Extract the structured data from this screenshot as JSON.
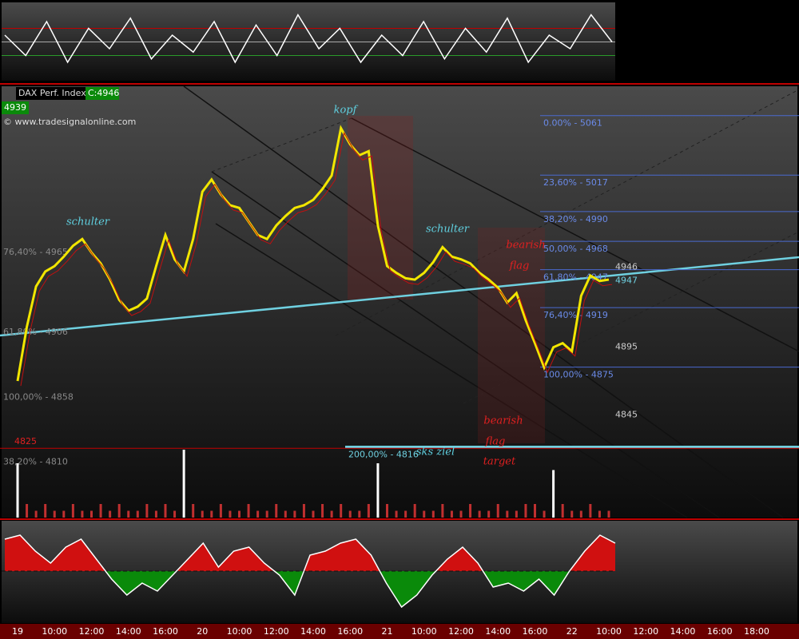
{
  "header": {
    "title": "DAX Perf. Index",
    "close": "C:4946",
    "last": "4939",
    "source": "© www.tradesignalonline.com"
  },
  "chart_data": {
    "type": "line",
    "color": "#f2e600",
    "categories": [
      "19",
      null,
      null,
      null,
      "10:00",
      null,
      null,
      null,
      "12:00",
      null,
      null,
      null,
      "14:00",
      null,
      null,
      null,
      "16:00",
      null,
      null,
      null,
      "20",
      null,
      null,
      null,
      "10:00",
      null,
      null,
      null,
      "12:00",
      null,
      null,
      null,
      "14:00",
      null,
      null,
      null,
      "16:00",
      null,
      null,
      null,
      "21",
      null,
      null,
      null,
      "10:00",
      null,
      null,
      null,
      "12:00",
      null,
      null,
      null,
      "14:00",
      null,
      null,
      null,
      "16:00",
      null,
      null,
      null,
      "22",
      null,
      null,
      null,
      "10:00",
      null,
      null,
      null,
      "12:00",
      null,
      null,
      null,
      "14:00",
      null,
      null,
      null,
      "16:00",
      null,
      null,
      null,
      "18:00"
    ],
    "values": [
      4870,
      4910,
      4940,
      4951,
      4955,
      4962,
      4970,
      4975,
      4965,
      4957,
      4945,
      4930,
      4922,
      4925,
      4931,
      4955,
      4978,
      4960,
      4951,
      4975,
      5010,
      5019,
      5008,
      5000,
      4998,
      4988,
      4978,
      4975,
      4985,
      4992,
      4998,
      5000,
      5004,
      5012,
      5022,
      5057,
      5045,
      5037,
      5040,
      4985,
      4955,
      4950,
      4946,
      4945,
      4950,
      4958,
      4969,
      4962,
      4960,
      4957,
      4950,
      4945,
      4939,
      4928,
      4935,
      4915,
      4898,
      4880,
      4895,
      4898,
      4892,
      4933,
      4948,
      4944,
      4945,
      null,
      null,
      null,
      null,
      null,
      null,
      null,
      null,
      null,
      null,
      null,
      null,
      null,
      null,
      null,
      null
    ],
    "ylim": [
      4769,
      5088
    ],
    "fib_levels": [
      {
        "value": 5061,
        "label": "0.00% - 5061"
      },
      {
        "value": 5017,
        "label": "23,60% - 5017"
      },
      {
        "value": 4990,
        "label": "38,20% - 4990"
      },
      {
        "value": 4968,
        "label": "50,00% - 4968"
      },
      {
        "value": 4947,
        "label": "61,80% - 4947"
      },
      {
        "value": 4919,
        "label": "76,40% - 4919"
      },
      {
        "value": 4875,
        "label": "100,00% - 4875"
      },
      {
        "value": 4816,
        "label": "200,00% - 4816"
      }
    ],
    "left_levels": [
      {
        "value": 4965,
        "label": "76,40% - 4965"
      },
      {
        "value": 4906,
        "label": "61,80% - 4906"
      },
      {
        "value": 4858,
        "label": "100,00% - 4858"
      },
      {
        "value": 4810,
        "label": "38,20% - 4810"
      }
    ],
    "right_levels": [
      4946,
      4895,
      4845
    ],
    "last_close": 4947,
    "stop_level": 4825,
    "annotations": [
      "schulter",
      "kopf",
      "schulter",
      "bearish",
      "flag",
      "bearish",
      "flag",
      "target",
      "sks ziel"
    ],
    "volume": {
      "ylim": [
        0,
        10
      ],
      "values": [
        8,
        2,
        1,
        2,
        1,
        1,
        2,
        1,
        1,
        2,
        1,
        2,
        1,
        1,
        2,
        1,
        2,
        1,
        10,
        2,
        1,
        1,
        2,
        1,
        1,
        2,
        1,
        1,
        2,
        1,
        1,
        2,
        1,
        2,
        1,
        2,
        1,
        1,
        2,
        8,
        2,
        1,
        1,
        2,
        1,
        1,
        2,
        1,
        1,
        2,
        1,
        1,
        2,
        1,
        1,
        2,
        2,
        1,
        7,
        2,
        1,
        1,
        2,
        1,
        1,
        null,
        null,
        null,
        null,
        null,
        null,
        null,
        null,
        null,
        null,
        null,
        null,
        null,
        null,
        null,
        null
      ]
    },
    "oscillator_top": {
      "ylim": [
        0,
        100
      ],
      "levels": [
        70,
        50,
        30
      ],
      "values": [
        60,
        30,
        80,
        20,
        70,
        40,
        85,
        25,
        60,
        35,
        80,
        20,
        75,
        30,
        90,
        40,
        70,
        20,
        60,
        30,
        80,
        25,
        70,
        35,
        85,
        20,
        60,
        40,
        90,
        50
      ]
    },
    "oscillator_bottom": {
      "ylim": [
        -1.2,
        1.2
      ],
      "values": [
        0.8,
        0.9,
        0.5,
        0.2,
        0.6,
        0.8,
        0.3,
        -0.2,
        -0.6,
        -0.3,
        -0.5,
        -0.1,
        0.3,
        0.7,
        0.1,
        0.5,
        0.6,
        0.2,
        -0.1,
        -0.6,
        0.4,
        0.5,
        0.7,
        0.8,
        0.4,
        -0.3,
        -0.9,
        -0.6,
        -0.1,
        0.3,
        0.6,
        0.2,
        -0.4,
        -0.3,
        -0.5,
        -0.2,
        -0.6,
        0.0,
        0.5,
        0.9,
        0.7
      ]
    }
  }
}
